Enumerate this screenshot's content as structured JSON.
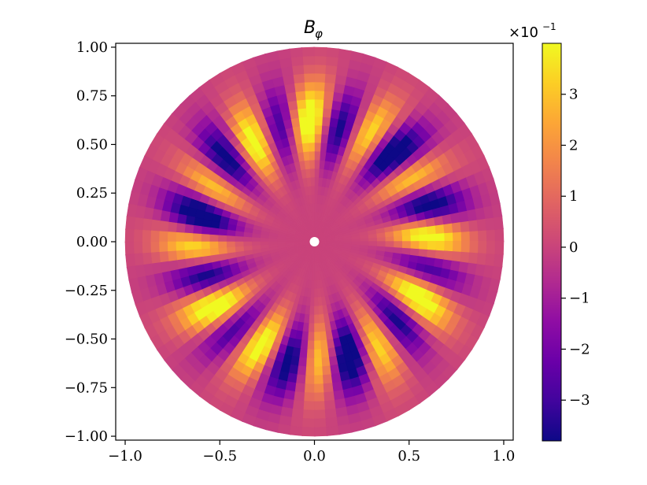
{
  "chart_data": {
    "type": "heatmap",
    "title": "B",
    "title_subscript": "φ",
    "colormap": "plasma",
    "xlim": [
      -1.05,
      1.05
    ],
    "ylim": [
      -1.02,
      1.02
    ],
    "x_ticks": [
      -1.0,
      -0.5,
      0.0,
      0.5,
      1.0
    ],
    "x_tick_labels": [
      "−1.0",
      "−0.5",
      "0.0",
      "0.5",
      "1.0"
    ],
    "y_ticks": [
      1.0,
      0.75,
      0.5,
      0.25,
      0.0,
      -0.25,
      -0.5,
      -0.75,
      -1.0
    ],
    "y_tick_labels": [
      "1.00",
      "0.75",
      "0.50",
      "0.25",
      "0.00",
      "−0.25",
      "−0.50",
      "−0.75",
      "−1.00"
    ],
    "domain": {
      "r_inner": 0.02,
      "r_outer": 1.0
    },
    "field": {
      "angular_mode": 12,
      "peak_radius": 0.62,
      "color_range": [
        -0.38,
        0.4
      ]
    },
    "colorbar": {
      "range": [
        -3.8,
        4.0
      ],
      "ticks": [
        3,
        2,
        1,
        0,
        -1,
        -2,
        -3
      ],
      "tick_labels": [
        "3",
        "2",
        "1",
        "0",
        "−1",
        "−2",
        "−3"
      ],
      "multiplier_base": "×10",
      "multiplier_exponent": "−1"
    }
  }
}
